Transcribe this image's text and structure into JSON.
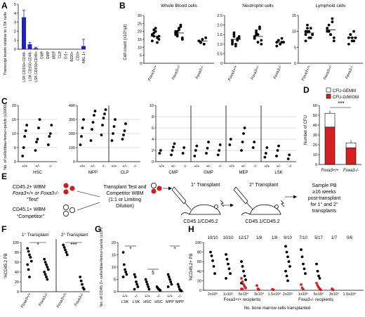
{
  "panels": {
    "A": {
      "letter": "A",
      "ylabel": "Transcript levels relative to LSK cells",
      "yticks": [
        "5",
        "4",
        "3",
        "2",
        "1",
        "0"
      ],
      "chart_data": {
        "type": "bar",
        "ylim": [
          0,
          5
        ],
        "categories": [
          "LSK CD150+CD48-",
          "LSK CD150-CD48-",
          "LSK CD150-CD48+",
          "CMP",
          "GMP",
          "MEP",
          "CLP",
          "Gr1+",
          "B220+",
          "CD3+",
          "NKL.1+"
        ],
        "values": [
          3.55,
          0.55,
          0.12,
          0,
          0,
          0,
          0,
          0,
          0,
          0,
          0.35
        ],
        "errors": [
          0.8,
          0.2,
          0.1,
          0,
          0,
          0,
          0,
          0,
          0,
          0,
          0.75
        ],
        "color": "#1c22c8"
      }
    },
    "B": {
      "letter": "B",
      "ylabel": "Cell count (x10⁶/µl)",
      "groups": [
        "Foxa3+/+",
        "Foxa3+/-",
        "Foxa3-/-"
      ],
      "charts": [
        {
          "title": "Whole Blood cells",
          "yticks": [
            "30",
            "25",
            "20",
            "15",
            "10",
            "5",
            "0"
          ],
          "ymax": 30,
          "values": [
            [
              18,
              17,
              20,
              16,
              15,
              14,
              19,
              22,
              13,
              17,
              18,
              21
            ],
            [
              20,
              18,
              22,
              24,
              16,
              19,
              17,
              21,
              23,
              15,
              18,
              20,
              22
            ],
            [
              14,
              13,
              15,
              12,
              16,
              14,
              13,
              15,
              12
            ]
          ],
          "means": [
            17,
            19,
            14
          ]
        },
        {
          "title": "Neutrophil cells",
          "yticks": [
            "2.5",
            "2.0",
            "1.5",
            "1.0",
            "0.5",
            "0"
          ],
          "ymax": 2.5,
          "values": [
            [
              1.2,
              1.5,
              1.0,
              1.3,
              1.4,
              1.1,
              1.6,
              0.9,
              1.2,
              1.3,
              1.0,
              1.4
            ],
            [
              1.3,
              1.7,
              1.5,
              1.9,
              1.2,
              1.4,
              1.6,
              1.1,
              1.8,
              1.0,
              1.3,
              1.5
            ],
            [
              1.1,
              1.2,
              1.0,
              1.3,
              1.1,
              0.9,
              1.2,
              1.0,
              1.1
            ]
          ],
          "means": [
            1.25,
            1.4,
            1.1
          ]
        },
        {
          "title": "Lymphoid cells",
          "yticks": [
            "15",
            "10",
            "5",
            "0"
          ],
          "ymax": 15,
          "values": [
            [
              9,
              10,
              8,
              11,
              9,
              7,
              12,
              10,
              8,
              9,
              10,
              11
            ],
            [
              10,
              12,
              9,
              13,
              8,
              11,
              10,
              9,
              14,
              7,
              11,
              10
            ],
            [
              8,
              9,
              7,
              10,
              8,
              6,
              9,
              8,
              7
            ]
          ],
          "means": [
            9.5,
            10.5,
            8
          ]
        }
      ]
    },
    "C": {
      "letter": "C",
      "ylabel": "No. of cells/tibia+femur+pelvis (x1000)",
      "genotypes": [
        "+/+",
        "+/-",
        "-/-"
      ],
      "charts": [
        {
          "yticks": [
            "20",
            "15",
            "10",
            "5",
            "0"
          ],
          "ymax": 20,
          "groups": [
            {
              "label": "HSC",
              "sets": [
                [
                  2,
                  5,
                  9,
                  11,
                  13
                ],
                [
                  4,
                  7,
                  8,
                  12,
                  15
                ],
                [
                  6,
                  9,
                  10,
                  13
                ]
              ]
            }
          ]
        },
        {
          "yticks": [
            "400",
            "300",
            "200",
            "100",
            "0"
          ],
          "ymax": 400,
          "groups": [
            {
              "label": "MPP",
              "sets": [
                [
                  120,
                  180,
                  240,
                  300
                ],
                [
                  150,
                  230,
                  280,
                  330,
                  360
                ],
                [
                  190,
                  260,
                  310,
                  340,
                  370
                ]
              ]
            },
            {
              "label": "CLP",
              "sets": [
                [
                  150,
                  200,
                  250,
                  300
                ],
                [
                  160,
                  190,
                  220,
                  270
                ],
                []
              ]
            }
          ]
        },
        {
          "yticks": [
            "10",
            "8",
            "6",
            "4",
            "2",
            "0"
          ],
          "ymax": 10,
          "groups": [
            {
              "label": "CMP",
              "sets": [
                [
                  1.5,
                  2
                ],
                [
                  1.2,
                  2,
                  2.6,
                  3.2
                ],
                [
                  1.5,
                  2.5
                ]
              ]
            },
            {
              "label": "GMP",
              "sets": [
                [
                  1,
                  2,
                  2.8
                ],
                [
                  1.5,
                  2.4,
                  3.5
                ],
                [
                  1.2,
                  2,
                  3
                ]
              ]
            },
            {
              "label": "MEP",
              "sets": [
                [
                  3,
                  4
                ],
                [
                  2,
                  3.5,
                  5,
                  6
                ],
                [
                  2.5,
                  3.5
                ]
              ]
            },
            {
              "label": "LSK",
              "sets": [
                [
                  0.8,
                  1.5,
                  2.5
                ],
                [
                  1,
                  2,
                  2.8
                ],
                [
                  0.5,
                  1.2
                ]
              ]
            }
          ]
        }
      ]
    },
    "D": {
      "letter": "D",
      "ylabel": "Number of CFU",
      "yticks": [
        "60",
        "50",
        "40",
        "30",
        "20",
        "10",
        "0"
      ],
      "legend": [
        "CFU-GEMM",
        "CFU-G/M/GM"
      ],
      "categories": [
        "Foxa3+/+",
        "Foxa3-/-"
      ],
      "significance": "***",
      "chart_data": {
        "type": "bar",
        "ylim": [
          0,
          60
        ],
        "categories": [
          "Foxa3+/+",
          "Foxa3-/-"
        ],
        "series": [
          {
            "name": "CFU-G/M/GM",
            "values": [
              38,
              17
            ],
            "color": "#d42020"
          },
          {
            "name": "CFU-GEMM",
            "values": [
              14,
              5
            ],
            "color": "#ffffff"
          }
        ]
      }
    },
    "E": {
      "letter": "E",
      "test_line1": "CD45.2+ WBM",
      "test_line2": "Foxa3+/+ or Foxa3-/-",
      "test_line3": "“Test”",
      "comp_line1": "CD45.1+ WBM",
      "comp_line2": "“Competitor”",
      "transplant_line1": "Transplant Test and",
      "transplant_line2": "Competitor WBM",
      "transplant_line3": "(1:1 or Limiting",
      "transplant_line4": "Dilution)",
      "primary": "1° Transplant",
      "secondary": "2° Transplant",
      "mouse_label": "CD45.1/CD45.2",
      "sample_line1": "Sample PB",
      "sample_line2": "≥16 weeks",
      "sample_line3": "post-transplant",
      "sample_line4": "for 1° and 2°",
      "sample_line5": "transplants"
    },
    "F": {
      "letter": "F",
      "ylabel": "%CD45.2 PB",
      "yticks": [
        "100",
        "80",
        "60",
        "40",
        "20",
        "0"
      ],
      "header1": "1° Transplant",
      "header2": "2° Transplant",
      "xlabels": [
        "Foxa3+/+",
        "Foxa3-/-",
        "Foxa3+/+",
        "Foxa3-/-"
      ],
      "sig1": "*",
      "sig2": "***",
      "sets": [
        [
          88,
          82,
          75,
          70,
          62,
          55,
          45,
          30
        ],
        [
          66,
          60,
          55,
          50,
          45,
          40,
          35,
          30,
          25
        ],
        [
          95,
          90,
          85,
          80,
          75
        ],
        [
          30,
          22,
          15,
          8,
          5
        ]
      ]
    },
    "G": {
      "letter": "G",
      "ylabel": "No. of CD45.2+ cells/tibia+femur+pelvis (x10³)",
      "yticks": [
        "20",
        "15",
        "10",
        "5",
        "0"
      ],
      "genos": [
        "+/+",
        "-/-",
        "+/+",
        "-/-",
        "+/+",
        "-/-"
      ],
      "types": [
        "LSK",
        "LSK",
        "HSC",
        "HSC",
        "MPP",
        "MPP"
      ],
      "sig1": "*",
      "sig2": "§",
      "sig3": "*",
      "sets": [
        [
          16,
          11,
          9,
          8,
          7,
          6
        ],
        [
          7,
          6,
          4,
          3,
          2,
          1
        ],
        [
          5,
          4,
          3,
          2,
          1
        ],
        [
          2,
          1.5,
          1,
          0.8,
          0.5
        ],
        [
          7,
          6,
          5,
          4,
          3,
          2
        ],
        [
          3,
          2,
          1,
          0.5,
          0.3
        ]
      ]
    },
    "H": {
      "letter": "H",
      "ylabel": "%CD45.2+ PB",
      "yticks": [
        "100",
        "80",
        "60",
        "40",
        "20",
        "0"
      ],
      "ratios_left": [
        "10/10",
        "10/10",
        "12/17",
        "1/8",
        "1/8"
      ],
      "ratios_right": [
        "9/10",
        "7/10",
        "5/17",
        "1/7",
        "0/6"
      ],
      "doses": [
        "2x10⁵",
        "1x10⁵",
        "5x10⁴",
        "3x10⁴",
        "1.5x10⁴"
      ],
      "recipients_left": "Foxa3+/+ recipients",
      "recipients_right": "Foxa3-/- recipients",
      "xlabel": "No. bone marrow cells transplanted",
      "sets_black": [
        [
          80,
          72,
          62,
          50,
          35
        ],
        [
          75,
          65,
          55,
          45,
          35,
          25
        ],
        [
          60,
          50,
          40,
          30,
          22,
          15
        ],
        [],
        [],
        [
          92,
          80,
          70,
          60,
          50,
          40,
          30,
          20
        ],
        [
          85,
          70,
          55,
          45,
          35
        ],
        [
          55,
          40,
          30,
          25
        ],
        [],
        []
      ],
      "sets_red": [
        [],
        [],
        [
          25,
          18,
          12,
          8,
          5,
          3,
          2
        ],
        [
          10,
          3,
          1
        ],
        [
          2,
          1
        ],
        [],
        [
          12,
          5,
          2
        ],
        [
          15,
          10,
          6,
          3,
          1
        ],
        [
          3,
          1
        ],
        []
      ]
    }
  }
}
